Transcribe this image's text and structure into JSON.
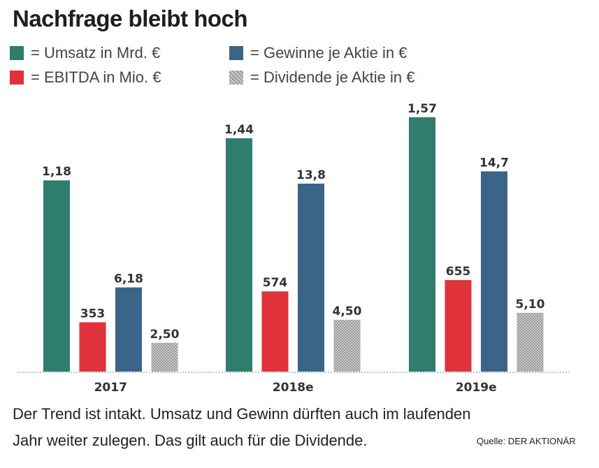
{
  "title": "Nachfrage bleibt hoch",
  "caption": [
    "Der Trend ist intakt. Umsatz und Gewinn dürften auch im laufenden",
    "Jahr weiter zulegen. Das gilt auch für die Dividende."
  ],
  "source": "Quelle: DER AKTIONÄR",
  "chart_data": {
    "type": "bar",
    "title": "Nachfrage bleibt hoch",
    "categories": [
      "2017",
      "2018e",
      "2019e"
    ],
    "legend_position": "top",
    "grid": false,
    "series": [
      {
        "name": "= Umsatz in Mrd. €",
        "color": "#2f7d6c",
        "values": [
          1.18,
          1.44,
          1.57
        ],
        "labels": [
          "1,18",
          "1,44",
          "1,57"
        ]
      },
      {
        "name": "= EBITDA in Mio. €",
        "color": "#e0323a",
        "values": [
          353,
          574,
          655
        ],
        "labels": [
          "353",
          "574",
          "655"
        ]
      },
      {
        "name": "= Gewinne je Aktie in €",
        "color": "#3b6489",
        "values": [
          6.18,
          13.8,
          14.7
        ],
        "labels": [
          "6,18",
          "13,8",
          "14,7"
        ]
      },
      {
        "name": "= Dividende je Aktie in €",
        "color": "#ababab",
        "values": [
          2.5,
          4.5,
          5.1
        ],
        "labels": [
          "2,50",
          "4,50",
          "5,10"
        ]
      }
    ]
  }
}
